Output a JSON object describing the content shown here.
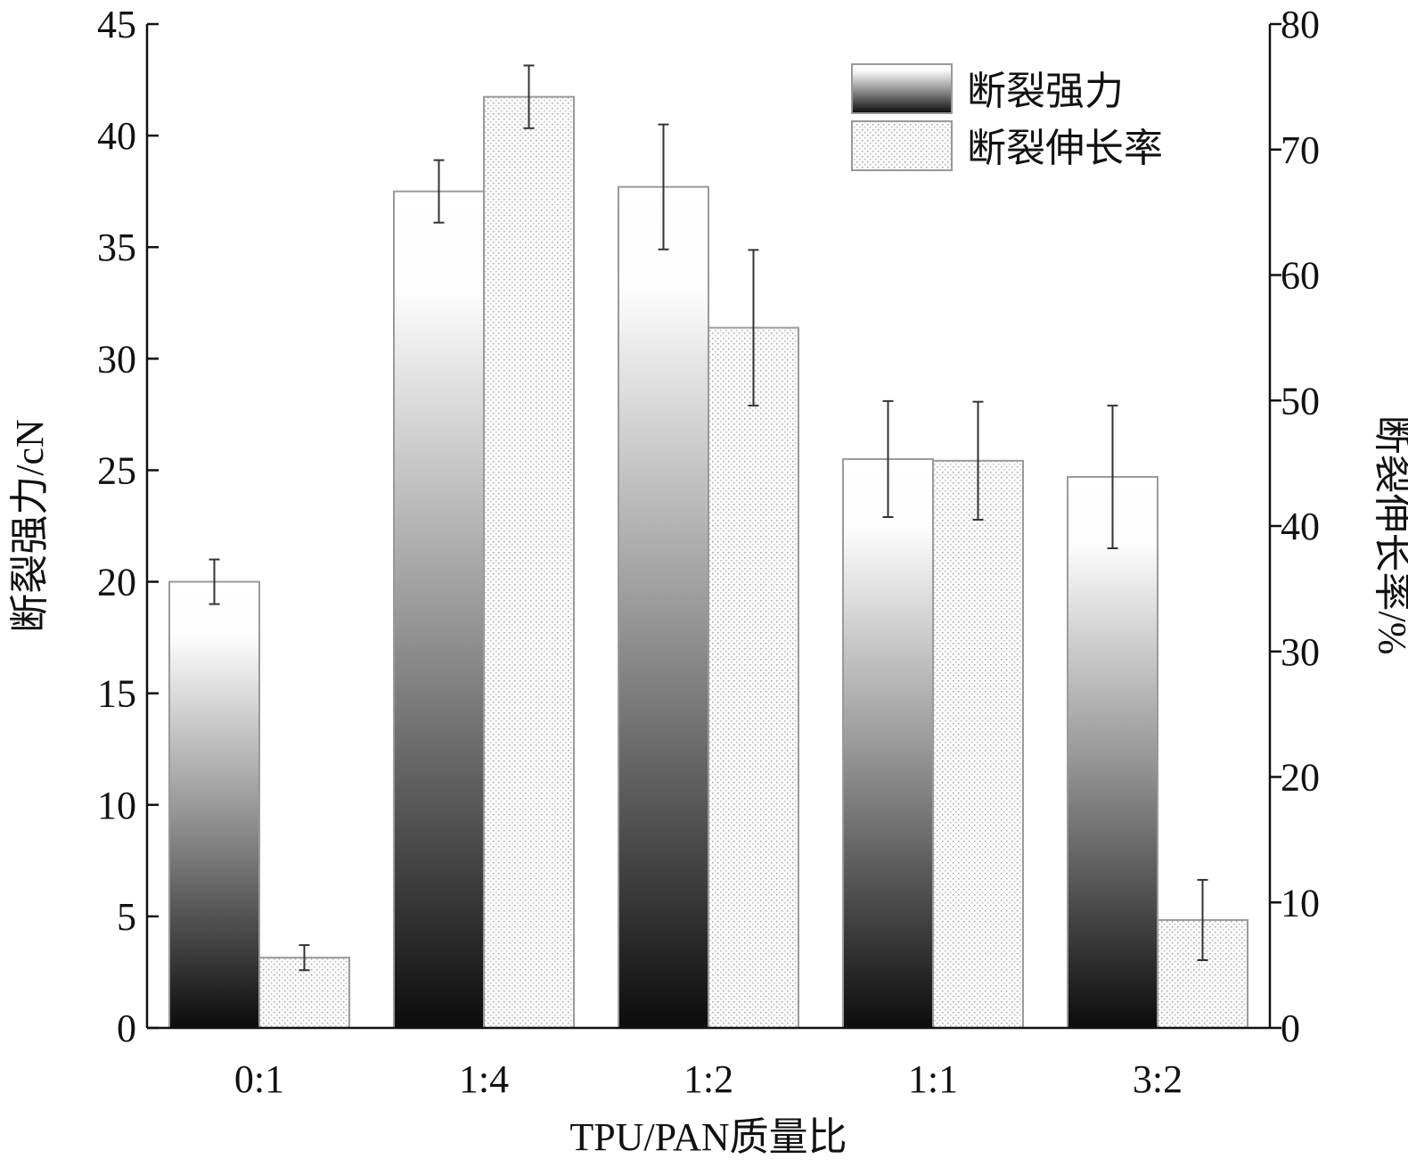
{
  "chart_data": {
    "type": "bar",
    "categories": [
      "0:1",
      "1:4",
      "1:2",
      "1:1",
      "3:2"
    ],
    "xlabel": "TPU/PAN质量比",
    "ylabel": "断裂强力/cN",
    "y2label": "断裂伸长率/%",
    "ylim": [
      0,
      45
    ],
    "y2lim": [
      0,
      80
    ],
    "yticks": [
      0,
      5,
      10,
      15,
      20,
      25,
      30,
      35,
      40,
      45
    ],
    "y2ticks": [
      0,
      10,
      20,
      30,
      40,
      50,
      60,
      70,
      80
    ],
    "legend_position": "top-right",
    "grid": false,
    "series": [
      {
        "name": "断裂强力",
        "axis": "left",
        "style": "gradient",
        "values": [
          20.0,
          37.5,
          37.7,
          25.5,
          24.7
        ],
        "errors": [
          1.0,
          1.4,
          2.8,
          2.6,
          3.2
        ]
      },
      {
        "name": "断裂伸长率",
        "axis": "right",
        "style": "dotted",
        "values": [
          5.6,
          74.2,
          55.8,
          45.2,
          8.6
        ],
        "errors": [
          1.0,
          2.5,
          6.2,
          4.7,
          3.2
        ]
      }
    ]
  }
}
